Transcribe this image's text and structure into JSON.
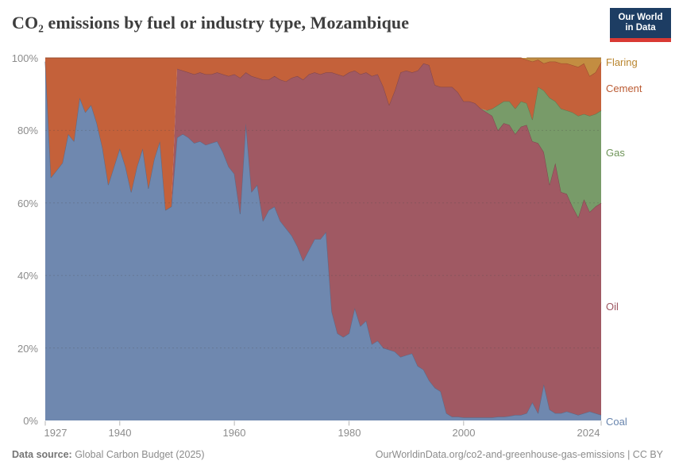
{
  "header": {
    "logo": {
      "line1": "Our World",
      "line2": "in Data"
    }
  },
  "chart_data": {
    "type": "area",
    "stacked": true,
    "percent_mode": true,
    "title": "CO₂ emissions by fuel or industry type, Mozambique",
    "xlabel": "",
    "ylabel": "",
    "ylim": [
      0,
      100
    ],
    "grid": "dashed-horizontal",
    "legend_position": "right-edge-inline",
    "y_tick_labels": [
      "100%",
      "80%",
      "60%",
      "40%",
      "20%",
      "0%"
    ],
    "x_tick_labels": [
      "1927",
      "1940",
      "1960",
      "1980",
      "2000",
      "2024"
    ],
    "x_ticks": [
      1927,
      1940,
      1960,
      1980,
      2000,
      2024
    ],
    "years": [
      1927,
      1928,
      1929,
      1930,
      1931,
      1932,
      1933,
      1934,
      1935,
      1936,
      1937,
      1938,
      1939,
      1940,
      1941,
      1942,
      1943,
      1944,
      1945,
      1946,
      1947,
      1948,
      1949,
      1950,
      1951,
      1952,
      1953,
      1954,
      1955,
      1956,
      1957,
      1958,
      1959,
      1960,
      1961,
      1962,
      1963,
      1964,
      1965,
      1966,
      1967,
      1968,
      1969,
      1970,
      1971,
      1972,
      1973,
      1974,
      1975,
      1976,
      1977,
      1978,
      1979,
      1980,
      1981,
      1982,
      1983,
      1984,
      1985,
      1986,
      1987,
      1988,
      1989,
      1990,
      1991,
      1992,
      1993,
      1994,
      1995,
      1996,
      1997,
      1998,
      1999,
      2000,
      2001,
      2002,
      2003,
      2004,
      2005,
      2006,
      2007,
      2008,
      2009,
      2010,
      2011,
      2012,
      2013,
      2014,
      2015,
      2016,
      2017,
      2018,
      2019,
      2020,
      2021,
      2022,
      2023,
      2024
    ],
    "unit": "% of CO₂ emissions",
    "series": [
      {
        "name": "Coal",
        "color": "#6f88af",
        "label_color": "#6784ad",
        "values": [
          99,
          67,
          69,
          71,
          79,
          77,
          89,
          85,
          87,
          82,
          75,
          65,
          70,
          75,
          70,
          63,
          70,
          75,
          64,
          72,
          77,
          58,
          59,
          78,
          79,
          78,
          76.5,
          77,
          76,
          76.5,
          77,
          74,
          70,
          68,
          57,
          82,
          63,
          65,
          55,
          58,
          59,
          55,
          53,
          51,
          48,
          44,
          47,
          50,
          50,
          52,
          30,
          24,
          23,
          24,
          31,
          26,
          27.5,
          21,
          22,
          20,
          19.5,
          19,
          17.5,
          18,
          18.5,
          15,
          14,
          11,
          9,
          8,
          2,
          1,
          1,
          0.8,
          0.8,
          0.8,
          0.8,
          0.8,
          0.8,
          1,
          1,
          1.2,
          1.5,
          1.5,
          2,
          5,
          2,
          10,
          3,
          2,
          2,
          2.5,
          2,
          1.5,
          2,
          2.5,
          2,
          1.5
        ]
      },
      {
        "name": "Oil",
        "color": "#a05963",
        "label_color": "#9e5661",
        "values": [
          0,
          0,
          0,
          0,
          0,
          0,
          0,
          0,
          0,
          0,
          0,
          0,
          0,
          0,
          0,
          0,
          0,
          0,
          0,
          0,
          0,
          0,
          0,
          19,
          17.5,
          18,
          19,
          19,
          19.5,
          19,
          19,
          21.5,
          25,
          27.5,
          37.5,
          14,
          32,
          29.5,
          39,
          36,
          36,
          39,
          40.5,
          43.5,
          47,
          50,
          48.5,
          46,
          45.5,
          44,
          66,
          71.5,
          72,
          72,
          65.5,
          69.5,
          68.5,
          74,
          73.5,
          72,
          67.5,
          72,
          78.5,
          78.5,
          77.5,
          81.5,
          84.5,
          87,
          83.5,
          84,
          90,
          91,
          89.5,
          87.2,
          87.2,
          86.7,
          85.2,
          84.2,
          83.2,
          79,
          81,
          80.3,
          77.5,
          79.5,
          79.5,
          72,
          74.5,
          64,
          62,
          69,
          61,
          60,
          57,
          54.5,
          59,
          55,
          57,
          58.5
        ]
      },
      {
        "name": "Gas",
        "color": "#789b69",
        "label_color": "#6f9559",
        "values": [
          0,
          0,
          0,
          0,
          0,
          0,
          0,
          0,
          0,
          0,
          0,
          0,
          0,
          0,
          0,
          0,
          0,
          0,
          0,
          0,
          0,
          0,
          0,
          0,
          0,
          0,
          0,
          0,
          0,
          0,
          0,
          0,
          0,
          0,
          0,
          0,
          0,
          0,
          0,
          0,
          0,
          0,
          0,
          0,
          0,
          0,
          0,
          0,
          0,
          0,
          0,
          0,
          0,
          0,
          0,
          0,
          0,
          0,
          0,
          0,
          0,
          0,
          0,
          0,
          0,
          0,
          0,
          0,
          0,
          0,
          0,
          0,
          0,
          0,
          0,
          0,
          0,
          0.5,
          2,
          7,
          6,
          6.5,
          7,
          7,
          6,
          6,
          15.5,
          17,
          24,
          17,
          23,
          23,
          26,
          28,
          23.5,
          26.5,
          25.5,
          25.5
        ]
      },
      {
        "name": "Cement",
        "color": "#c4613a",
        "label_color": "#bb5b33",
        "values": [
          1,
          33,
          31,
          29,
          21,
          23,
          11,
          15,
          13,
          18,
          25,
          35,
          30,
          25,
          30,
          37,
          30,
          25,
          36,
          28,
          23,
          42,
          41,
          3,
          3.5,
          4,
          4.5,
          4,
          4.5,
          4.5,
          4,
          4.5,
          5,
          4.5,
          5.5,
          4,
          5,
          5.5,
          6,
          6,
          5,
          6,
          6.5,
          5.5,
          5,
          6,
          4.5,
          4,
          4.5,
          4,
          4,
          4.5,
          5,
          4,
          3.5,
          4.5,
          4,
          5,
          4.5,
          8,
          13,
          9,
          4,
          3.5,
          4,
          3.5,
          1.5,
          2,
          7.5,
          8,
          8,
          8,
          9.5,
          12,
          12,
          12.5,
          14,
          14.5,
          14,
          13,
          12,
          12,
          14,
          12,
          12,
          16,
          7.5,
          7.5,
          10,
          11,
          12.5,
          13,
          13,
          13.5,
          14,
          11,
          11.5,
          13.3
        ]
      },
      {
        "name": "Flaring",
        "color": "#c38d41",
        "label_color": "#b9852e",
        "values": [
          0,
          0,
          0,
          0,
          0,
          0,
          0,
          0,
          0,
          0,
          0,
          0,
          0,
          0,
          0,
          0,
          0,
          0,
          0,
          0,
          0,
          0,
          0,
          0,
          0,
          0,
          0,
          0,
          0,
          0,
          0,
          0,
          0,
          0,
          0,
          0,
          0,
          0,
          0,
          0,
          0,
          0,
          0,
          0,
          0,
          0,
          0,
          0,
          0,
          0,
          0,
          0,
          0,
          0,
          0,
          0,
          0,
          0,
          0,
          0,
          0,
          0,
          0,
          0,
          0,
          0,
          0,
          0,
          0,
          0,
          0,
          0,
          0,
          0,
          0,
          0,
          0,
          0,
          0,
          0,
          0,
          0,
          0,
          0,
          0.5,
          1,
          0.5,
          1.5,
          1,
          1,
          1.5,
          1.5,
          2,
          2.5,
          1.5,
          5,
          4,
          1.2
        ]
      }
    ]
  },
  "footer": {
    "source_label": "Data source:",
    "source_value": " Global Carbon Budget (2025)",
    "license": "OurWorldinData.org/co2-and-greenhouse-gas-emissions | CC BY"
  }
}
